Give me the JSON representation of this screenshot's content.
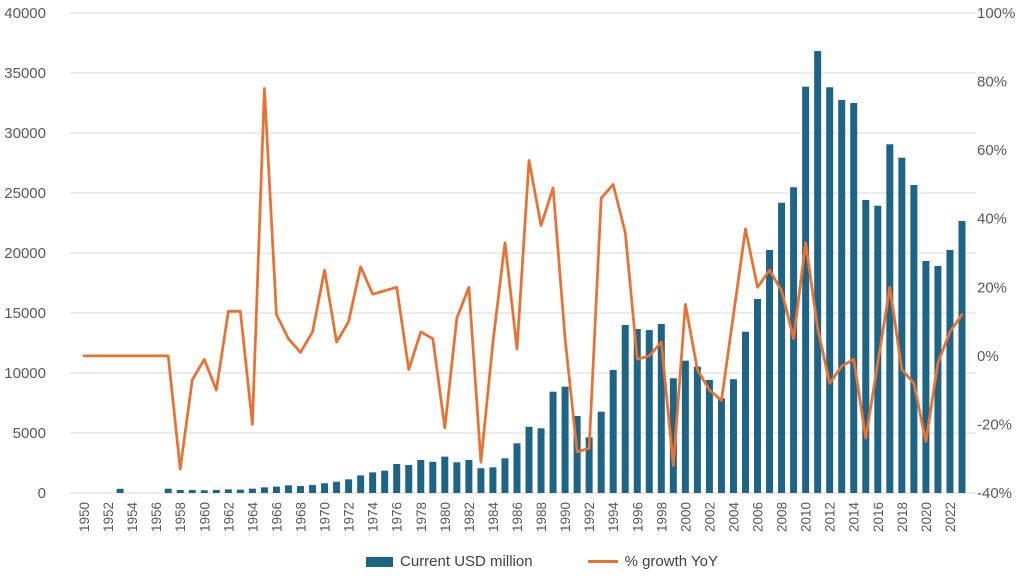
{
  "chart_data": {
    "type": "combo-bar-line",
    "title": "",
    "categories": [
      1950,
      1951,
      1952,
      1953,
      1954,
      1955,
      1956,
      1957,
      1958,
      1959,
      1960,
      1961,
      1962,
      1963,
      1964,
      1965,
      1966,
      1967,
      1968,
      1969,
      1970,
      1971,
      1972,
      1973,
      1974,
      1975,
      1976,
      1977,
      1978,
      1979,
      1980,
      1981,
      1982,
      1983,
      1984,
      1985,
      1986,
      1987,
      1988,
      1989,
      1990,
      1991,
      1992,
      1993,
      1994,
      1995,
      1996,
      1997,
      1998,
      1999,
      2000,
      2001,
      2002,
      2003,
      2004,
      2005,
      2006,
      2007,
      2008,
      2009,
      2010,
      2011,
      2012,
      2013,
      2014,
      2015,
      2016,
      2017,
      2018,
      2019,
      2020,
      2021,
      2022,
      2023
    ],
    "x_tick_labels": [
      "1950",
      "1952",
      "1954",
      "1956",
      "1958",
      "1960",
      "1962",
      "1964",
      "1966",
      "1968",
      "1970",
      "1972",
      "1974",
      "1976",
      "1978",
      "1980",
      "1982",
      "1984",
      "1986",
      "1988",
      "1990",
      "1992",
      "1994",
      "1996",
      "1998",
      "2000",
      "2002",
      "2004",
      "2006",
      "2008",
      "2010",
      "2012",
      "2014",
      "2016",
      "2018",
      "2020",
      "2022"
    ],
    "series": [
      {
        "name": "Current USD million",
        "type": "bar",
        "axis": "left",
        "color": "#1E6484",
        "values": [
          0,
          0,
          0,
          350,
          0,
          0,
          0,
          360,
          250,
          250,
          230,
          250,
          300,
          280,
          360,
          470,
          530,
          640,
          580,
          670,
          810,
          940,
          1140,
          1470,
          1720,
          1860,
          2420,
          2330,
          2750,
          2600,
          3030,
          2560,
          2750,
          2060,
          2140,
          2890,
          4140,
          5520,
          5390,
          8440,
          8860,
          6420,
          4640,
          6780,
          10250,
          14000,
          13670,
          13580,
          14080,
          9560,
          11030,
          10530,
          9420,
          7890,
          9480,
          13440,
          16170,
          20250,
          24190,
          25480,
          33860,
          36830,
          33810,
          32750,
          32500,
          24420,
          23940,
          29060,
          27940,
          25670,
          19330,
          18920,
          20250,
          22670
        ]
      },
      {
        "name": "% growth YoY",
        "type": "line",
        "axis": "right",
        "color": "#E97132",
        "values": [
          0,
          0,
          0,
          0,
          0,
          0,
          0,
          0,
          -33,
          -7,
          -1,
          -10,
          13,
          13,
          -20,
          78,
          12,
          5,
          1,
          7,
          25,
          4,
          10,
          26,
          18,
          19,
          20,
          -4,
          7,
          5,
          -21,
          11,
          20,
          -31,
          4,
          33,
          2,
          57,
          38,
          49,
          5,
          -28,
          -27,
          46,
          50,
          36,
          -1,
          0,
          4,
          -32,
          15,
          -4,
          -10,
          -13,
          12,
          37,
          20,
          25,
          19,
          5,
          33,
          8,
          -8,
          -3,
          -1,
          -24,
          -2,
          20,
          -4,
          -8,
          -25,
          -2,
          7,
          12
        ]
      }
    ],
    "left_axis": {
      "min": 0,
      "max": 40000,
      "step": 5000,
      "tick_labels": [
        "0",
        "5000",
        "10000",
        "15000",
        "20000",
        "25000",
        "30000",
        "35000",
        "40000"
      ]
    },
    "right_axis": {
      "min": -40,
      "max": 100,
      "step": 20,
      "tick_labels": [
        "-40%",
        "-20%",
        "0%",
        "20%",
        "40%",
        "60%",
        "80%",
        "100%"
      ]
    },
    "grid": {
      "show": true,
      "color": "#D9D9D9"
    },
    "legend_position": "bottom-center"
  },
  "legend": {
    "items": [
      {
        "label": "Current USD million",
        "swatch": "bar",
        "color": "#1E6484"
      },
      {
        "label": "% growth YoY",
        "swatch": "line",
        "color": "#E97132"
      }
    ]
  },
  "style": {
    "axis_label_color": "#595959",
    "legend_text_color": "#404040",
    "background": "#ffffff"
  }
}
